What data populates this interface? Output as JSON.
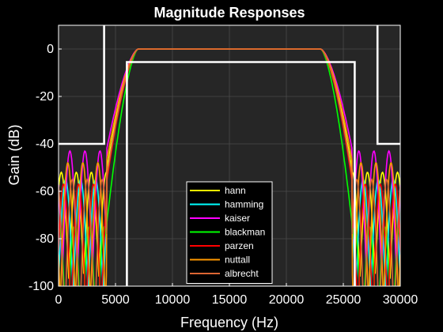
{
  "chart_data": {
    "type": "line",
    "title": "Magnitude Responses",
    "xlabel": "Frequency (Hz)",
    "ylabel": "Gain (dB)",
    "xlim": [
      0,
      30000
    ],
    "ylim": [
      -100,
      10
    ],
    "xticks": [
      0,
      5000,
      10000,
      15000,
      20000,
      25000,
      30000
    ],
    "yticks": [
      -100,
      -80,
      -60,
      -40,
      -20,
      0
    ],
    "xtick_labels": [
      "0",
      "5000",
      "10000",
      "15000",
      "20000",
      "25000",
      "30000"
    ],
    "ytick_labels": [
      "-100",
      "-80",
      "-60",
      "-40",
      "-20",
      "0"
    ],
    "grid": true,
    "legend_position": "lower-center",
    "spec_mask": {
      "color": "#ffffff",
      "stopband_left": [
        [
          0,
          -40
        ],
        [
          4000,
          -40
        ],
        [
          4000,
          10
        ]
      ],
      "passband": [
        [
          6000,
          -100
        ],
        [
          6000,
          -5.5
        ],
        [
          26000,
          -5.5
        ],
        [
          26000,
          -100
        ]
      ],
      "stopband_right": [
        [
          28000,
          10
        ],
        [
          28000,
          -40
        ],
        [
          30000,
          -40
        ]
      ]
    },
    "series": [
      {
        "name": "hann",
        "color": "#ffff00",
        "stopband_level": -52
      },
      {
        "name": "hamming",
        "color": "#00ffff",
        "stopband_level": -55
      },
      {
        "name": "kaiser",
        "color": "#ff00ff",
        "stopband_level": -43
      },
      {
        "name": "blackman",
        "color": "#00ff00",
        "stopband_level": -75
      },
      {
        "name": "parzen",
        "color": "#ff0000",
        "stopband_level": -57
      },
      {
        "name": "nuttall",
        "color": "#ff9900",
        "stopband_level": -48
      },
      {
        "name": "albrecht",
        "color": "#dd6633",
        "stopband_level": -55
      }
    ]
  }
}
